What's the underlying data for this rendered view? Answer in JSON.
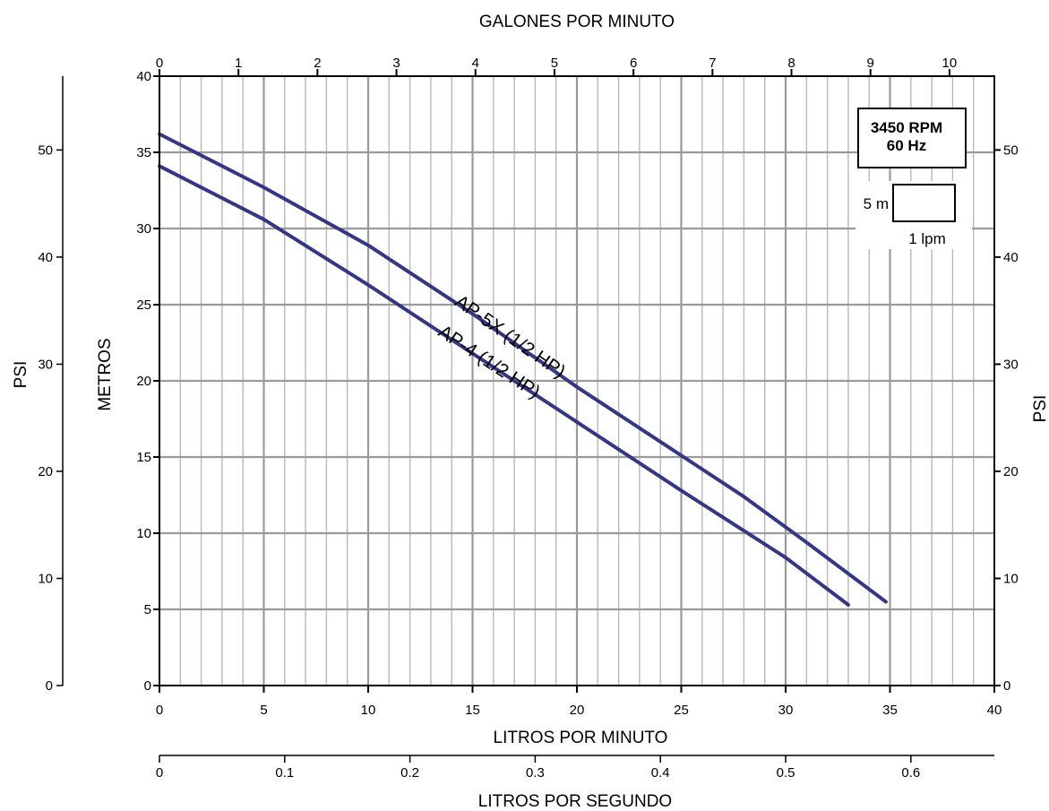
{
  "chart_data": {
    "type": "line",
    "title": "GALONES POR MINUTO",
    "xlabel": "LITROS POR MINUTO",
    "ylabel": "METROS",
    "xlim": [
      0,
      40
    ],
    "ylim": [
      0,
      40
    ],
    "grid": true,
    "x_ticks": [
      0,
      5,
      10,
      15,
      20,
      25,
      30,
      35,
      40
    ],
    "y_ticks": [
      0,
      5,
      10,
      15,
      20,
      25,
      30,
      35,
      40
    ],
    "top_axis": {
      "label": "GALONES POR MINUTO",
      "unit_factor_lpm": 3.785,
      "ticks": [
        0,
        1,
        2,
        3,
        4,
        5,
        6,
        7,
        8,
        9,
        10
      ]
    },
    "bottom_axis_2": {
      "label": "LITROS POR SEGUNDO",
      "unit_factor_lpm": 60,
      "ticks": [
        0,
        0.1,
        0.2,
        0.3,
        0.4,
        0.5,
        0.6
      ]
    },
    "psi_axis": {
      "label": "PSI",
      "unit_factor_m": 0.7031,
      "ticks": [
        0,
        10,
        20,
        30,
        40,
        50
      ]
    },
    "series": [
      {
        "name": "AP-5X (1/2 HP)",
        "color": "#343783",
        "x": [
          0,
          5,
          10,
          15,
          20,
          25,
          28,
          31,
          34.8
        ],
        "y": [
          36.2,
          32.7,
          28.9,
          24.4,
          19.6,
          15.1,
          12.4,
          9.4,
          5.5
        ]
      },
      {
        "name": "AP-4 (1/2 HP)",
        "color": "#343783",
        "x": [
          0,
          5,
          10,
          15,
          20,
          25,
          30,
          33
        ],
        "y": [
          34.1,
          30.6,
          26.3,
          21.8,
          17.3,
          12.8,
          8.4,
          5.3
        ]
      }
    ],
    "legend": {
      "rpm": "3450 RPM",
      "hz": "60 Hz",
      "scale_m": "5 m",
      "scale_lpm": "1 lpm"
    }
  }
}
